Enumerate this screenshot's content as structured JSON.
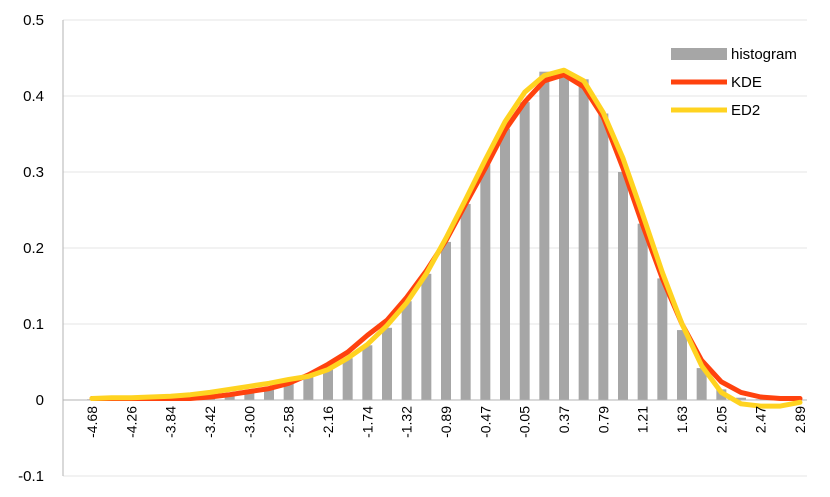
{
  "chart_data": {
    "type": "bar+line",
    "title": "",
    "xlabel": "",
    "ylabel": "",
    "ylim": [
      -0.1,
      0.5
    ],
    "yticks": [
      "0.5",
      "0.4",
      "0.3",
      "0.2",
      "0.1",
      "0",
      "-0.1"
    ],
    "ytick_values": [
      0.5,
      0.4,
      0.3,
      0.2,
      0.1,
      0,
      -0.1
    ],
    "grid": "horizontal",
    "legend_position": "top-right",
    "xtick_labels": [
      "-4.68",
      "-4.26",
      "-3.84",
      "-3.42",
      "-3.00",
      "-2.58",
      "-2.16",
      "-1.74",
      "-1.32",
      "-0.89",
      "-0.47",
      "-0.05",
      "0.37",
      "0.79",
      "1.21",
      "1.63",
      "2.05",
      "2.47",
      "2.89"
    ],
    "categories": [
      "-4.68",
      "-4.47",
      "-4.26",
      "-4.05",
      "-3.84",
      "-3.63",
      "-3.42",
      "-3.21",
      "-3.00",
      "-2.79",
      "-2.58",
      "-2.37",
      "-2.16",
      "-1.95",
      "-1.74",
      "-1.53",
      "-1.32",
      "-1.11",
      "-0.89",
      "-0.68",
      "-0.47",
      "-0.26",
      "-0.05",
      "0.16",
      "0.37",
      "0.58",
      "0.79",
      "1.00",
      "1.21",
      "1.42",
      "1.63",
      "1.84",
      "2.05",
      "2.26",
      "2.47",
      "2.68",
      "2.89"
    ],
    "series": [
      {
        "name": "histogram",
        "kind": "bar",
        "color": "#a6a6a6",
        "values": [
          0.001,
          0.001,
          0.002,
          0.002,
          0.003,
          0.004,
          0.006,
          0.008,
          0.011,
          0.016,
          0.022,
          0.03,
          0.04,
          0.055,
          0.072,
          0.095,
          0.13,
          0.166,
          0.208,
          0.258,
          0.31,
          0.357,
          0.392,
          0.432,
          0.43,
          0.422,
          0.377,
          0.3,
          0.232,
          0.16,
          0.092,
          0.042,
          0.014,
          0.003,
          0.001,
          0,
          0
        ]
      },
      {
        "name": "KDE",
        "kind": "line",
        "color": "#ff420e",
        "values": [
          0.002,
          0.002,
          0.002,
          0.002,
          0.002,
          0.002,
          0.004,
          0.007,
          0.011,
          0.015,
          0.022,
          0.033,
          0.047,
          0.063,
          0.085,
          0.105,
          0.135,
          0.17,
          0.21,
          0.258,
          0.305,
          0.355,
          0.392,
          0.42,
          0.428,
          0.412,
          0.372,
          0.305,
          0.23,
          0.16,
          0.1,
          0.052,
          0.024,
          0.01,
          0.004,
          0.002,
          0.002
        ]
      },
      {
        "name": "ED2",
        "kind": "line",
        "color": "#ffd320",
        "values": [
          0.002,
          0.003,
          0.003,
          0.004,
          0.005,
          0.007,
          0.01,
          0.014,
          0.018,
          0.022,
          0.027,
          0.031,
          0.04,
          0.055,
          0.073,
          0.098,
          0.128,
          0.166,
          0.213,
          0.264,
          0.316,
          0.366,
          0.405,
          0.427,
          0.434,
          0.42,
          0.378,
          0.318,
          0.244,
          0.168,
          0.1,
          0.045,
          0.01,
          -0.005,
          -0.008,
          -0.008,
          -0.003
        ]
      }
    ]
  }
}
